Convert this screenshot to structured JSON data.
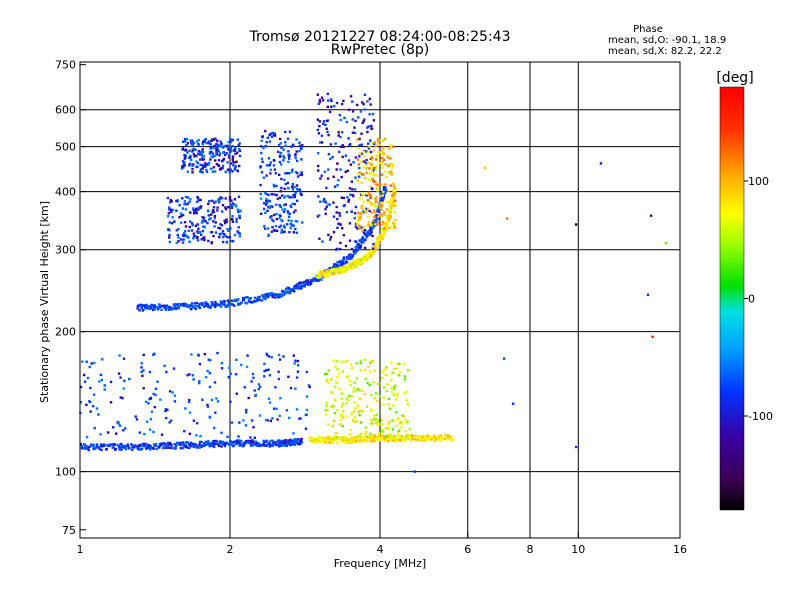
{
  "chart_data": {
    "type": "scatter",
    "title": "Tromsø 20121227 08:24:00-08:25:43",
    "subtitle": "RwPretec (8p)",
    "xlabel": "Frequency [MHz]",
    "ylabel": "Stationary phase Virtual Height [km]",
    "x_scale": "log",
    "y_scale": "log",
    "xlim": [
      1,
      16
    ],
    "ylim": [
      72,
      760
    ],
    "x_ticks": [
      1,
      2,
      4,
      6,
      8,
      10,
      16
    ],
    "y_ticks": [
      75,
      100,
      200,
      300,
      400,
      500,
      600,
      750
    ],
    "x_grid": [
      2,
      4,
      6,
      8,
      10
    ],
    "y_grid": [
      100,
      200,
      300,
      400,
      500,
      600
    ],
    "grid": true,
    "color_variable": "phase",
    "colorbar": {
      "label": "[deg]",
      "range": [
        -180,
        180
      ],
      "ticks": [
        100,
        0,
        -100
      ]
    },
    "stats_box": {
      "title": "Phase",
      "line1": "mean, sd,O: -90.1, 18.9",
      "line2": "mean, sd,X:  82.2, 22.2"
    },
    "trace_segments": [
      {
        "name": "E-region O trace",
        "freq": [
          1.0,
          1.3,
          1.6,
          2.0,
          2.5,
          2.8
        ],
        "height": [
          113,
          113,
          114,
          115,
          115,
          116
        ],
        "phase": -95
      },
      {
        "name": "F-region O trace",
        "freq": [
          1.3,
          1.6,
          2.0,
          2.5,
          3.0,
          3.5,
          3.9,
          4.1
        ],
        "height": [
          225,
          226,
          230,
          240,
          260,
          290,
          340,
          410
        ],
        "phase": -90
      },
      {
        "name": "F-region X trace",
        "freq": [
          3.0,
          3.4,
          3.8,
          4.1,
          4.3
        ],
        "height": [
          265,
          272,
          290,
          330,
          410
        ],
        "phase": 80
      },
      {
        "name": "E-region X trace",
        "freq": [
          2.9,
          3.4,
          4.0,
          4.6,
          5.6
        ],
        "height": [
          117,
          117,
          118,
          118,
          118
        ],
        "phase": 85
      }
    ],
    "scatter_clusters": [
      {
        "freq_range": [
          1.0,
          2.9
        ],
        "height_range": [
          118,
          180
        ],
        "phase": -90
      },
      {
        "freq_range": [
          1.5,
          2.1
        ],
        "height_range": [
          310,
          390
        ],
        "phase": -95
      },
      {
        "freq_range": [
          1.6,
          2.1
        ],
        "height_range": [
          440,
          520
        ],
        "phase": -95
      },
      {
        "freq_range": [
          2.3,
          2.8
        ],
        "height_range": [
          320,
          540
        ],
        "phase": -90
      },
      {
        "freq_range": [
          3.0,
          3.9
        ],
        "height_range": [
          300,
          650
        ],
        "phase": -105
      },
      {
        "freq_range": [
          3.1,
          4.6
        ],
        "height_range": [
          118,
          175
        ],
        "phase": 60
      },
      {
        "freq_range": [
          3.6,
          4.3
        ],
        "height_range": [
          330,
          520
        ],
        "phase": 95
      }
    ],
    "isolated_points": [
      {
        "freq": 4.7,
        "height": 100,
        "phase": -100
      },
      {
        "freq": 6.5,
        "height": 450,
        "phase": 100
      },
      {
        "freq": 7.1,
        "height": 175,
        "phase": -90
      },
      {
        "freq": 7.2,
        "height": 350,
        "phase": 120
      },
      {
        "freq": 7.4,
        "height": 140,
        "phase": -100
      },
      {
        "freq": 9.9,
        "height": 340,
        "phase": -170
      },
      {
        "freq": 9.9,
        "height": 113,
        "phase": -100
      },
      {
        "freq": 11.1,
        "height": 460,
        "phase": -110
      },
      {
        "freq": 13.8,
        "height": 240,
        "phase": -100
      },
      {
        "freq": 14.0,
        "height": 355,
        "phase": -150
      },
      {
        "freq": 14.1,
        "height": 195,
        "phase": 150
      },
      {
        "freq": 15.0,
        "height": 310,
        "phase": 30
      }
    ]
  }
}
